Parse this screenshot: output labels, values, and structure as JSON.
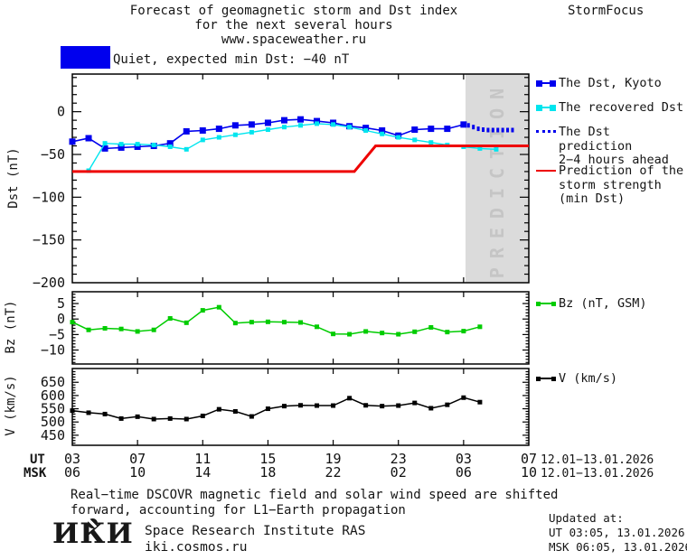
{
  "header": {
    "title_line1": "Forecast of geomagnetic storm and Dst index",
    "title_line2": "for the next several hours",
    "title_line3": "www.spaceweather.ru",
    "brand": "StormFocus"
  },
  "status": {
    "label": "Quiet, expected min Dst: −40 nT",
    "box_color": "#0000EE"
  },
  "prediction_zone": {
    "label": "PREDICTION",
    "start_hour": 24.1,
    "end_hour": 28,
    "bg": "#DBDBDB",
    "fg": "#C5C5C5"
  },
  "legend": {
    "items": [
      {
        "label": "The Dst, Kyoto",
        "color": "#0000EE"
      },
      {
        "label": "The recovered Dst",
        "color": "#00E5EE"
      },
      {
        "label": "The Dst prediction",
        "label2": "2−4 hours ahead",
        "color": "#0000EE"
      },
      {
        "label": "Prediction of the",
        "label2": "storm strength",
        "label3": "(min Dst)",
        "color": "#EE0000"
      }
    ],
    "bz": {
      "label": "Bz (nT, GSM)",
      "color": "#00CC00"
    },
    "v": {
      "label": "V (km/s)",
      "color": "#000000"
    }
  },
  "xaxis": {
    "ut_row_label": "UT",
    "msk_row_label": "MSK",
    "tick_hours": [
      0,
      4,
      8,
      12,
      16,
      20,
      24,
      28
    ],
    "ut_labels": [
      "03",
      "07",
      "11",
      "15",
      "19",
      "23",
      "03",
      "07"
    ],
    "msk_labels": [
      "06",
      "10",
      "14",
      "18",
      "22",
      "02",
      "06",
      "10"
    ],
    "ut_date": "12.01−13.01.2026",
    "msk_date": "12.01−13.01.2026"
  },
  "chart_data": [
    {
      "type": "line",
      "id": "dst",
      "ylabel": "Dst (nT)",
      "ylim": [
        -200,
        44
      ],
      "yticks": {
        "values": [
          0,
          -50,
          -100,
          -150,
          -200
        ],
        "labels": [
          "0",
          "−50",
          "−100",
          "−150",
          "−200"
        ]
      },
      "minor_tick_step": 10,
      "series": [
        {
          "name": "The Dst, Kyoto",
          "color": "#0000EE",
          "marker_size": 7,
          "line_width": 1.6,
          "x": [
            0,
            1,
            2,
            3,
            4,
            5,
            6,
            7,
            8,
            9,
            10,
            11,
            12,
            13,
            14,
            15,
            16,
            17,
            18,
            19,
            20,
            21,
            22,
            23,
            24
          ],
          "values": [
            -35,
            -31,
            -43,
            -42,
            -41,
            -40,
            -37,
            -23,
            -22,
            -20,
            -16,
            -15,
            -13,
            -10,
            -9,
            -11,
            -13,
            -17,
            -19,
            -22,
            -28,
            -21,
            -20,
            -20,
            -15
          ]
        },
        {
          "name": "The recovered Dst",
          "color": "#00E5EE",
          "marker_size": 5,
          "line_width": 1.4,
          "x": [
            1,
            2,
            3,
            4,
            5,
            6,
            7,
            8,
            9,
            10,
            11,
            12,
            13,
            14,
            15,
            16,
            17,
            18,
            19,
            20,
            21,
            22,
            23,
            24,
            25,
            26
          ],
          "values": [
            -69,
            -37,
            -38,
            -38,
            -39,
            -41,
            -44,
            -33,
            -30,
            -27,
            -24,
            -21,
            -18,
            -16,
            -14,
            -15,
            -18,
            -22,
            -26,
            -30,
            -33,
            -36,
            -39,
            -41,
            -43,
            -44
          ]
        },
        {
          "name": "The Dst prediction 2−4 hours ahead",
          "color": "#0000EE",
          "style": "dotted",
          "x": [
            24.3,
            24.6,
            24.9,
            25.2,
            25.5,
            25.8,
            26.1,
            26.4,
            26.7,
            27.0
          ],
          "values": [
            -16,
            -18,
            -20,
            -21,
            -21.5,
            -21.5,
            -21.5,
            -21.5,
            -21.5,
            -21.5
          ]
        },
        {
          "name": "Prediction of the storm strength (min Dst)",
          "color": "#EE0000",
          "line_width": 3,
          "x": [
            0,
            17.3,
            18.6,
            28
          ],
          "values": [
            -70,
            -70,
            -40,
            -40
          ]
        }
      ]
    },
    {
      "type": "line",
      "id": "bz",
      "ylabel": "Bz (nT)",
      "ylim": [
        -14.5,
        8.8
      ],
      "yticks": {
        "values": [
          5,
          0,
          -5,
          -10
        ],
        "labels": [
          "5",
          "0",
          "−5",
          "−10"
        ]
      },
      "minor_tick_step": 1,
      "series": [
        {
          "name": "Bz (nT, GSM)",
          "color": "#00CC00",
          "marker_size": 5,
          "line_width": 1.5,
          "x": [
            0,
            1,
            2,
            3,
            4,
            5,
            6,
            7,
            8,
            9,
            10,
            11,
            12,
            13,
            14,
            15,
            16,
            17,
            18,
            19,
            20,
            21,
            22,
            23,
            24,
            25
          ],
          "values": [
            -1,
            -3.5,
            -3,
            -3.2,
            -4,
            -3.5,
            0.2,
            -1.2,
            2.8,
            3.8,
            -1.3,
            -1,
            -0.9,
            -1,
            -1.1,
            -2.5,
            -4.8,
            -4.9,
            -4,
            -4.5,
            -4.9,
            -4.1,
            -2.7,
            -4.2,
            -3.9,
            -2.5
          ]
        }
      ]
    },
    {
      "type": "line",
      "id": "v",
      "ylabel": "V (km/s)",
      "ylim": [
        412,
        702
      ],
      "yticks": {
        "values": [
          650,
          600,
          550,
          500,
          450
        ],
        "labels": [
          "650",
          "600",
          "550",
          "500",
          "450"
        ]
      },
      "minor_tick_step": 10,
      "series": [
        {
          "name": "V (km/s)",
          "color": "#000000",
          "marker_size": 5,
          "line_width": 1.5,
          "x": [
            0,
            1,
            2,
            3,
            4,
            5,
            6,
            7,
            8,
            9,
            10,
            11,
            12,
            13,
            14,
            15,
            16,
            17,
            18,
            19,
            20,
            21,
            22,
            23,
            24,
            25
          ],
          "values": [
            543,
            535,
            530,
            513,
            520,
            511,
            513,
            511,
            523,
            548,
            540,
            521,
            550,
            560,
            563,
            562,
            562,
            590,
            563,
            560,
            562,
            572,
            552,
            565,
            592,
            575
          ]
        }
      ]
    }
  ],
  "footnote": {
    "line1": "Real−time DSCOVR magnetic field and solar wind speed are shifted",
    "line2": "forward, accounting for L1−Earth propagation"
  },
  "footer": {
    "logo": "ИКИ",
    "org": "Space Research Institute RAS",
    "site": "iki.cosmos.ru",
    "updated_label": "Updated at:",
    "updated_ut": "UT  03:05, 13.01.2026",
    "updated_msk": "MSK 06:05, 13.01.2026"
  }
}
